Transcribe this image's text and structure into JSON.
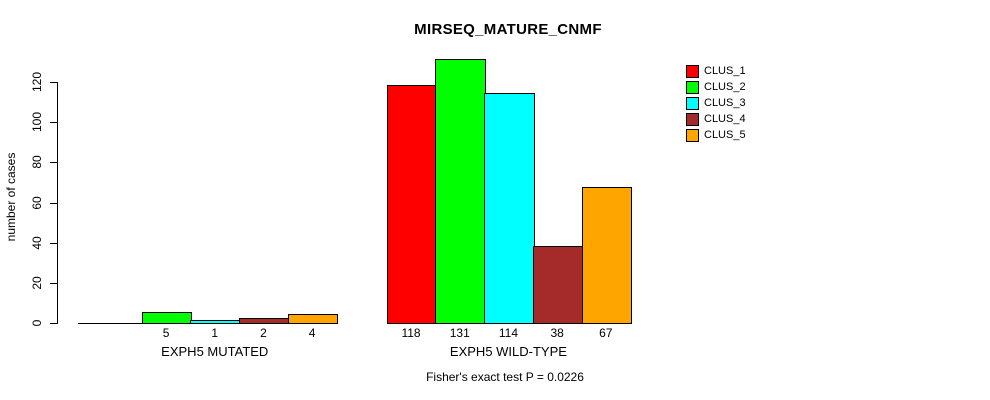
{
  "title": "MIRSEQ_MATURE_CNMF",
  "subtitle": "Fisher's exact test P = 0.0226",
  "y_axis": {
    "label": "number of cases",
    "ticks": [
      0,
      20,
      40,
      60,
      80,
      100,
      120
    ]
  },
  "legend": {
    "items": [
      {
        "label": "CLUS_1",
        "color": "#FF0000"
      },
      {
        "label": "CLUS_2",
        "color": "#00FF00"
      },
      {
        "label": "CLUS_3",
        "color": "#00FFFF"
      },
      {
        "label": "CLUS_4",
        "color": "#A52A2A"
      },
      {
        "label": "CLUS_5",
        "color": "#FFA500"
      }
    ]
  },
  "chart_data": {
    "type": "bar",
    "title": "MIRSEQ_MATURE_CNMF",
    "xlabel": "",
    "ylabel": "number of cases",
    "ylim": [
      0,
      135
    ],
    "yticks": [
      0,
      20,
      40,
      60,
      80,
      100,
      120
    ],
    "grid": false,
    "legend_position": "top-right",
    "annotation": "Fisher's exact test P = 0.0226",
    "series": [
      "CLUS_1",
      "CLUS_2",
      "CLUS_3",
      "CLUS_4",
      "CLUS_5"
    ],
    "colors": [
      "#FF0000",
      "#00FF00",
      "#00FFFF",
      "#A52A2A",
      "#FFA500"
    ],
    "groups": [
      {
        "label": "EXPH5 MUTATED",
        "values": [
          0,
          5,
          1,
          2,
          4
        ],
        "value_labels": [
          "",
          "5",
          "1",
          "2",
          "4"
        ]
      },
      {
        "label": "EXPH5 WILD-TYPE",
        "values": [
          118,
          131,
          114,
          38,
          67
        ],
        "value_labels": [
          "118",
          "131",
          "114",
          "38",
          "67"
        ]
      }
    ]
  }
}
